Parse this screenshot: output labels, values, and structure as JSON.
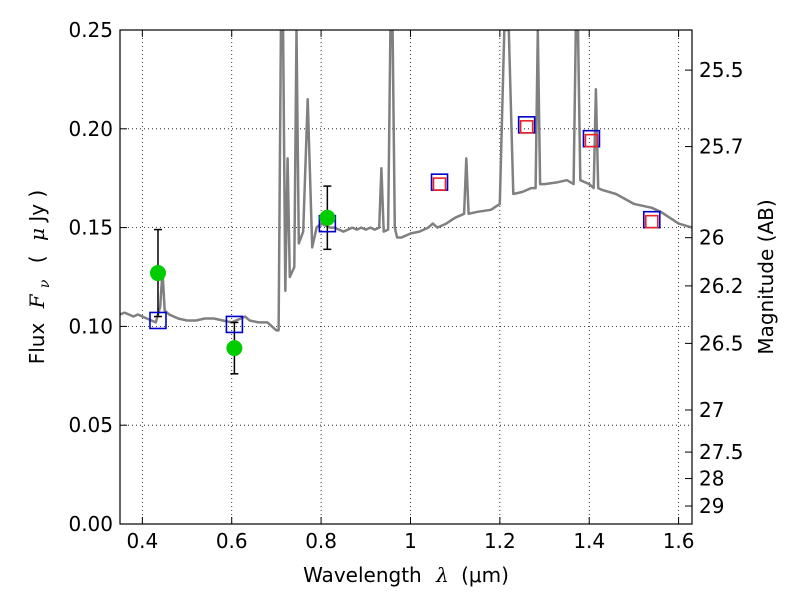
{
  "chart_data": {
    "type": "scatter",
    "xlabel": "Wavelength",
    "xlabel_symbol": "λ",
    "xlabel_unit": "(μm)",
    "ylabel": "Flux",
    "ylabel_symbol": "F",
    "ylabel_subscript": "ν",
    "ylabel_unit_open": "(",
    "ylabel_unit_mu": "μ",
    "ylabel_unit_rest": "Jy )",
    "y2label": "Magnitude (AB)",
    "xlim": [
      0.35,
      1.63
    ],
    "ylim": [
      0,
      0.25
    ],
    "grid": true,
    "x_ticks": [
      0.4,
      0.6,
      0.8,
      1.0,
      1.2,
      1.4,
      1.6
    ],
    "x_tick_labels": [
      "0.4",
      "0.6",
      "0.8",
      "1",
      "1.2",
      "1.4",
      "1.6"
    ],
    "y_ticks": [
      0,
      0.05,
      0.1,
      0.15,
      0.2,
      0.25
    ],
    "y_tick_labels": [
      "0.00",
      "0.05",
      "0.10",
      "0.15",
      "0.20",
      "0.25"
    ],
    "mag_ticks": [
      {
        "label": "25.5",
        "flux": 0.2297
      },
      {
        "label": "25.7",
        "flux": 0.191
      },
      {
        "label": "26",
        "flux": 0.1449
      },
      {
        "label": "26.2",
        "flux": 0.1205
      },
      {
        "label": "26.5",
        "flux": 0.0914
      },
      {
        "label": "27",
        "flux": 0.0577
      },
      {
        "label": "27.5",
        "flux": 0.0364
      },
      {
        "label": "28",
        "flux": 0.023
      },
      {
        "label": "29",
        "flux": 0.0091
      }
    ],
    "series": [
      {
        "name": "model spectrum",
        "style": "line",
        "color": "#808080",
        "x": [
          0.35,
          0.36,
          0.37,
          0.38,
          0.39,
          0.4,
          0.41,
          0.42,
          0.43,
          0.44,
          0.445,
          0.45,
          0.46,
          0.47,
          0.48,
          0.5,
          0.52,
          0.54,
          0.56,
          0.58,
          0.6,
          0.62,
          0.63,
          0.64,
          0.66,
          0.68,
          0.7,
          0.705,
          0.71,
          0.715,
          0.72,
          0.725,
          0.73,
          0.74,
          0.745,
          0.75,
          0.76,
          0.77,
          0.78,
          0.79,
          0.8,
          0.81,
          0.82,
          0.83,
          0.84,
          0.85,
          0.86,
          0.87,
          0.88,
          0.89,
          0.9,
          0.91,
          0.92,
          0.93,
          0.935,
          0.94,
          0.95,
          0.955,
          0.96,
          0.965,
          0.97,
          0.98,
          1.0,
          1.02,
          1.04,
          1.05,
          1.06,
          1.08,
          1.1,
          1.12,
          1.125,
          1.13,
          1.15,
          1.18,
          1.2,
          1.21,
          1.22,
          1.23,
          1.25,
          1.27,
          1.28,
          1.285,
          1.29,
          1.3,
          1.33,
          1.35,
          1.365,
          1.37,
          1.375,
          1.38,
          1.4,
          1.41,
          1.415,
          1.42,
          1.43,
          1.46,
          1.5,
          1.54,
          1.56,
          1.58,
          1.6,
          1.63
        ],
        "y": [
          0.106,
          0.107,
          0.106,
          0.105,
          0.106,
          0.105,
          0.104,
          0.103,
          0.102,
          0.11,
          0.128,
          0.108,
          0.106,
          0.105,
          0.104,
          0.103,
          0.103,
          0.104,
          0.104,
          0.103,
          0.102,
          0.104,
          0.105,
          0.103,
          0.102,
          0.102,
          0.098,
          0.098,
          0.25,
          0.25,
          0.118,
          0.185,
          0.125,
          0.13,
          0.25,
          0.142,
          0.148,
          0.215,
          0.14,
          0.15,
          0.152,
          0.151,
          0.15,
          0.15,
          0.149,
          0.148,
          0.149,
          0.15,
          0.149,
          0.15,
          0.149,
          0.15,
          0.149,
          0.15,
          0.18,
          0.148,
          0.149,
          0.25,
          0.25,
          0.15,
          0.145,
          0.145,
          0.147,
          0.148,
          0.15,
          0.152,
          0.15,
          0.152,
          0.155,
          0.157,
          0.185,
          0.157,
          0.158,
          0.159,
          0.162,
          0.25,
          0.25,
          0.167,
          0.168,
          0.17,
          0.17,
          0.25,
          0.172,
          0.172,
          0.173,
          0.174,
          0.172,
          0.25,
          0.25,
          0.174,
          0.172,
          0.17,
          0.22,
          0.17,
          0.169,
          0.167,
          0.162,
          0.16,
          0.158,
          0.155,
          0.152,
          0.15
        ]
      },
      {
        "name": "photometry",
        "style": "markers-error",
        "color": "#00cc00",
        "x": [
          0.435,
          0.606,
          0.814
        ],
        "y": [
          0.127,
          0.089,
          0.155
        ],
        "yerr": [
          0.022,
          0.013,
          0.016
        ]
      },
      {
        "name": "model bands (blue)",
        "style": "open-square",
        "color": "#0000cc",
        "x": [
          0.435,
          0.606,
          0.814,
          1.065,
          1.26,
          1.405,
          1.54
        ],
        "y": [
          0.103,
          0.101,
          0.152,
          0.173,
          0.202,
          0.195,
          0.154
        ]
      },
      {
        "name": "model bands (red)",
        "style": "open-square",
        "color": "#ee2222",
        "x": [
          1.065,
          1.26,
          1.405,
          1.54
        ],
        "y": [
          0.172,
          0.201,
          0.194,
          0.153
        ]
      }
    ]
  }
}
